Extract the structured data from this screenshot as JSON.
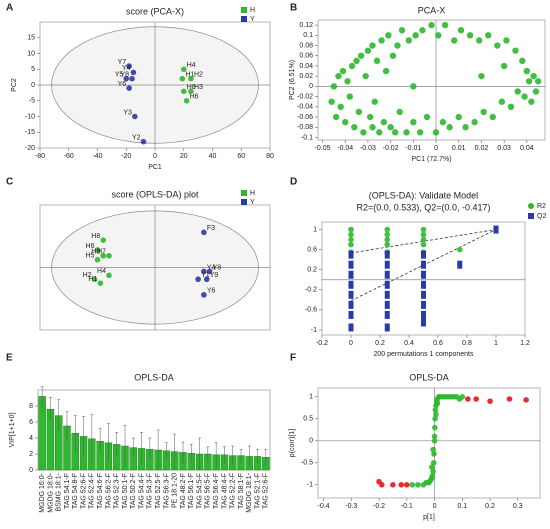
{
  "chart_data": [
    {
      "type": "scatter",
      "panel_label": "A",
      "title": "score (PCA-X)",
      "x_label": "PC1",
      "y_label": "PC2",
      "xlim": [
        -80,
        80
      ],
      "ylim": [
        -20,
        20
      ],
      "xticks": [
        -80,
        -60,
        -40,
        -20,
        0,
        20,
        40,
        60,
        80
      ],
      "yticks": [
        -20,
        -15,
        -10,
        -5,
        0,
        5,
        10,
        15
      ],
      "zero_lines": "xy",
      "ellipse": {
        "rx": 72,
        "ry": 18.5
      },
      "legend": "top-right",
      "series": [
        {
          "name": "H",
          "color": "#2eb82e",
          "marker": "circle",
          "labels": [
            "H4",
            "H1",
            "H2",
            "H8",
            "H3",
            "H6"
          ],
          "x": [
            20,
            19,
            25,
            20,
            25,
            22
          ],
          "values": [
            5,
            2,
            2,
            -2,
            -2,
            -5
          ]
        },
        {
          "name": "Y",
          "color": "#2a3aa6",
          "marker": "circle",
          "labels": [
            "Y7",
            "Y4",
            "Y5",
            "Y8",
            "Y6",
            "Y3",
            "Y2"
          ],
          "x": [
            -18,
            -15,
            -20,
            -16,
            -18,
            -14,
            -8
          ],
          "values": [
            6,
            4,
            2,
            2,
            -1,
            -10,
            -18
          ]
        }
      ]
    },
    {
      "type": "scatter",
      "panel_label": "B",
      "title": "PCA-X",
      "x_label": "PC1 (72.7%)",
      "y_label": "PC2 (6.51%)",
      "xlim": [
        -0.052,
        0.048
      ],
      "ylim": [
        -0.105,
        0.13
      ],
      "xticks": [
        -0.05,
        -0.04,
        -0.03,
        -0.02,
        -0.01,
        0,
        0.01,
        0.02,
        0.03,
        0.04
      ],
      "yticks": [
        -0.1,
        -0.08,
        -0.06,
        -0.04,
        -0.02,
        0,
        0.02,
        0.04,
        0.06,
        0.08,
        0.1,
        0.12
      ],
      "zero_lines": "xy",
      "series": [
        {
          "color": "#2eb82e",
          "marker": "circle",
          "x": [
            -0.046,
            -0.045,
            -0.044,
            -0.043,
            -0.042,
            -0.041,
            -0.04,
            -0.039,
            -0.038,
            -0.037,
            -0.036,
            -0.035,
            -0.034,
            -0.033,
            -0.032,
            -0.031,
            -0.03,
            -0.029,
            -0.028,
            -0.027,
            -0.026,
            -0.025,
            -0.024,
            -0.023,
            -0.022,
            -0.021,
            -0.02,
            -0.019,
            -0.018,
            -0.017,
            -0.016,
            -0.015,
            -0.013,
            -0.012,
            -0.01,
            -0.009,
            -0.007,
            -0.006,
            -0.004,
            -0.002,
            0,
            0.001,
            0.003,
            0.004,
            0.006,
            0.008,
            0.01,
            0.011,
            0.013,
            0.015,
            0.017,
            0.019,
            0.021,
            0.023,
            0.025,
            0.027,
            0.029,
            0.031,
            0.033,
            0.035,
            0.036,
            0.038,
            0.039,
            0.04,
            0.041,
            0.042,
            0.043,
            0.044,
            0.045,
            -0.028,
            0.02,
            -0.01,
            0.03
          ],
          "values": [
            -0.03,
            0,
            -0.06,
            0.02,
            -0.04,
            0.03,
            -0.07,
            0.01,
            -0.02,
            0.04,
            -0.08,
            0.05,
            -0.05,
            0.06,
            -0.09,
            0.02,
            0.07,
            -0.06,
            0.08,
            -0.03,
            0.05,
            -0.09,
            0.09,
            -0.07,
            0.03,
            0.1,
            -0.08,
            0.06,
            -0.09,
            0.08,
            -0.05,
            0.11,
            -0.09,
            0.09,
            -0.07,
            0.1,
            -0.09,
            0.11,
            -0.06,
            0.12,
            -0.09,
            0.1,
            -0.07,
            0.12,
            -0.08,
            0.09,
            -0.06,
            0.11,
            -0.08,
            0.1,
            -0.07,
            0.09,
            -0.05,
            0.1,
            -0.06,
            0.08,
            -0.03,
            0.09,
            -0.04,
            0.07,
            -0.01,
            0.05,
            -0.02,
            0.03,
            0.01,
            -0.03,
            0.02,
            -0.01,
            0.01,
            -0.08,
            0.02,
            0,
            0.04
          ]
        }
      ]
    },
    {
      "type": "scatter",
      "panel_label": "C",
      "title": "score (OPLS-DA) plot",
      "xlim": [
        -40,
        40
      ],
      "ylim": [
        -16,
        16
      ],
      "zero_lines": "xy",
      "ellipse": {
        "rx": 36,
        "ry": 14.5
      },
      "legend": "top-right",
      "series": [
        {
          "name": "H",
          "color": "#2eb82e",
          "marker": "circle",
          "labels": [
            "H8",
            "H6",
            "H3",
            "H7",
            "H5",
            "H4",
            "H2",
            "H1"
          ],
          "x": [
            -18,
            -20,
            -18,
            -16,
            -20,
            -16,
            -21,
            -19
          ],
          "values": [
            7,
            4.5,
            3,
            3,
            2,
            -2,
            -3,
            -4
          ]
        },
        {
          "name": "Y",
          "color": "#2a3aa6",
          "marker": "circle",
          "labels": [
            "F3",
            "Y4",
            "Y8",
            "Y1",
            "Y9",
            "Y6"
          ],
          "x": [
            17,
            17,
            19,
            15,
            18,
            17
          ],
          "values": [
            9,
            -1,
            -1,
            -3,
            -3,
            -7
          ]
        }
      ]
    },
    {
      "type": "scatter",
      "panel_label": "D",
      "title": "(OPLS-DA): Validate Model",
      "subtitle": "R2=(0.0, 0.533), Q2=(0.0, -0.417)",
      "x_label": "200 permutations 1 components",
      "xlim": [
        -0.2,
        1.2
      ],
      "ylim": [
        -1.1,
        1.15
      ],
      "xticks": [
        -0.2,
        0,
        0.2,
        0.4,
        0.6,
        0.8,
        1,
        1.2
      ],
      "yticks": [
        -1,
        -0.6,
        -0.2,
        0.2,
        0.6,
        1
      ],
      "zero_lines": "y",
      "legend": "outside-right",
      "lines": [
        [
          [
            0,
            0.533
          ],
          [
            1,
            1
          ]
        ],
        [
          [
            0,
            -0.417
          ],
          [
            1,
            1
          ]
        ]
      ],
      "series": [
        {
          "name": "R2",
          "color": "#2eb82e",
          "marker": "circle",
          "x": [
            0,
            0,
            0,
            0,
            0,
            0.25,
            0.25,
            0.25,
            0.25,
            0.25,
            0.5,
            0.5,
            0.5,
            0.5,
            0.5,
            0.75,
            1
          ],
          "values": [
            1,
            0.9,
            0.8,
            0.7,
            0.55,
            1,
            0.9,
            0.8,
            0.7,
            0.55,
            1,
            0.9,
            0.8,
            0.7,
            0.55,
            0.6,
            1
          ]
        },
        {
          "name": "Q2",
          "color": "#2a3aa6",
          "marker": "square",
          "x": [
            0,
            0,
            0,
            0,
            0,
            0,
            0,
            0,
            0.25,
            0.25,
            0.25,
            0.25,
            0.25,
            0.25,
            0.25,
            0.25,
            0.5,
            0.5,
            0.5,
            0.5,
            0.5,
            0.5,
            0.5,
            0.5,
            0.75,
            1
          ],
          "values": [
            0.5,
            0.3,
            0.1,
            -0.1,
            -0.3,
            -0.5,
            -0.7,
            -0.95,
            0.5,
            0.3,
            0.1,
            -0.1,
            -0.3,
            -0.5,
            -0.7,
            -0.95,
            0.5,
            0.3,
            0.1,
            -0.1,
            -0.3,
            -0.5,
            -0.7,
            -0.85,
            0.3,
            1
          ]
        }
      ]
    },
    {
      "type": "bar",
      "panel_label": "E",
      "title": "OPLS-DA",
      "y_label": "VIP[1+1+0]",
      "color": "#2eb82e",
      "ylim": [
        0,
        10
      ],
      "yticks": [
        0,
        2,
        4,
        6,
        8
      ],
      "categories": [
        "MGDG 16:0-",
        "MGDG 18:0-",
        "BSMG 18:1-",
        "TAG 54:1-F",
        "TAG 54:8-F",
        "TAG 52:6-F",
        "TAG 52:4-F",
        "TAG 54:6-F",
        "TAG 56:2-F",
        "TAG 52:3-F",
        "TAG 50:1-F",
        "TAG 50:2-F",
        "TAG 54:4-F",
        "TAG 54:3-F",
        "TAG 52:5-F",
        "TAG 56:3-F",
        "PE 18:1-20",
        "TAG 48:2-F",
        "TAG 56:1-F",
        "TAG 54:5-F",
        "TAG 56:5-F",
        "TAG 56:4-F",
        "TAG 48:4-F",
        "TAG 52:2-F",
        "TAG 58:1-F",
        "MGDG 18:1-",
        "TAG 52:1-F",
        "TAG 52:6-F"
      ],
      "values": [
        9.2,
        7.6,
        6.8,
        5.5,
        4.6,
        4.2,
        3.9,
        3.6,
        3.4,
        3.2,
        3.0,
        2.8,
        2.7,
        2.6,
        2.5,
        2.4,
        2.3,
        2.2,
        2.1,
        2.0,
        2.0,
        1.9,
        1.9,
        1.8,
        1.8,
        1.7,
        1.7,
        1.6
      ],
      "errors": [
        1.2,
        1.5,
        2.0,
        1.8,
        2.2,
        2.5,
        3.0,
        1.6,
        2.4,
        1.5,
        2.6,
        1.2,
        2.0,
        1.4,
        2.5,
        1.0,
        2.2,
        1.3,
        1.1,
        2.0,
        0.9,
        1.5,
        1.0,
        1.2,
        0.8,
        1.3,
        0.9,
        1.0
      ]
    },
    {
      "type": "scatter",
      "panel_label": "F",
      "title": "OPLS-DA",
      "x_label": "p[1]",
      "y_label": "p(corr)[1]",
      "xlim": [
        -0.42,
        0.38
      ],
      "ylim": [
        -1.3,
        1.2
      ],
      "xticks": [
        -0.4,
        -0.3,
        -0.2,
        -0.1,
        0,
        0.1,
        0.2,
        0.3
      ],
      "yticks": [
        -1,
        -0.5,
        0,
        0.5,
        1
      ],
      "zero_lines": "xy",
      "series": [
        {
          "color": "#2eb82e",
          "marker": "circle",
          "x": [
            -0.08,
            -0.06,
            -0.04,
            -0.03,
            -0.02,
            -0.015,
            -0.01,
            -0.008,
            -0.005,
            -0.003,
            -0.002,
            0,
            0.001,
            0.002,
            0.003,
            0.005,
            0.008,
            0.01,
            0.015,
            0.02,
            0.03,
            0.04,
            0.05,
            0.06,
            0.07,
            0.08,
            0.09,
            0.1,
            -0.01,
            -0.005,
            0,
            0.005,
            0.01
          ],
          "values": [
            -1,
            -1,
            -1,
            -0.95,
            -0.95,
            -0.9,
            -0.85,
            -0.8,
            -0.7,
            -0.5,
            -0.3,
            0,
            0.3,
            0.5,
            0.7,
            0.8,
            0.9,
            0.95,
            1,
            1,
            1,
            1,
            1,
            1,
            1,
            1,
            0.95,
            1,
            -0.6,
            -0.2,
            0.1,
            0.6,
            0.85
          ]
        },
        {
          "color": "#e8141e",
          "marker": "circle",
          "x": [
            -0.2,
            -0.19,
            -0.15,
            -0.12,
            -0.1,
            0.12,
            0.15,
            0.2,
            0.27,
            0.33
          ],
          "values": [
            -0.93,
            -1,
            -1,
            -1,
            -1,
            0.95,
            0.95,
            0.9,
            0.95,
            0.93
          ]
        }
      ]
    }
  ]
}
